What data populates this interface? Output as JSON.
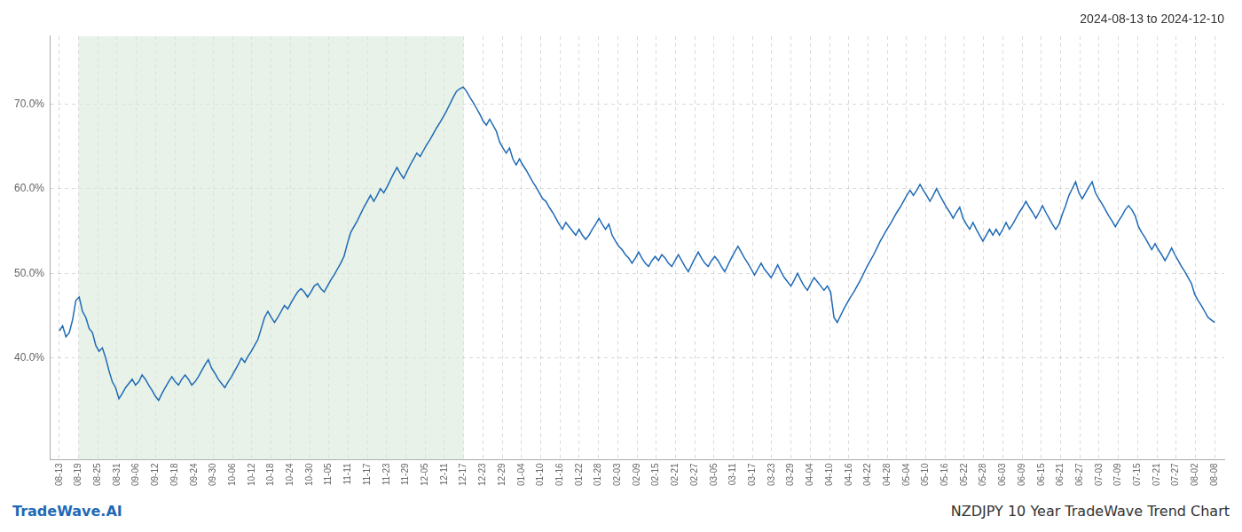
{
  "chart_data": {
    "type": "line",
    "title": "2024-08-13 to 2024-12-10",
    "annotations": [
      "TradeWave.AI",
      "NZDJPY 10 Year TradeWave Trend Chart"
    ],
    "color": "#1f6ab5",
    "grid": true,
    "shaded_range": {
      "from": "08-19",
      "to": "12-17",
      "color": "#d8ead8"
    },
    "xlim": [
      -0.5,
      60.5
    ],
    "xticks": [
      {
        "value": 0,
        "label": "08-13"
      },
      {
        "value": 1,
        "label": "08-19"
      },
      {
        "value": 2,
        "label": "08-25"
      },
      {
        "value": 3,
        "label": "08-31"
      },
      {
        "value": 4,
        "label": "09-06"
      },
      {
        "value": 5,
        "label": "09-12"
      },
      {
        "value": 6,
        "label": "09-18"
      },
      {
        "value": 7,
        "label": "09-24"
      },
      {
        "value": 8,
        "label": "09-30"
      },
      {
        "value": 9,
        "label": "10-06"
      },
      {
        "value": 10,
        "label": "10-12"
      },
      {
        "value": 11,
        "label": "10-18"
      },
      {
        "value": 12,
        "label": "10-24"
      },
      {
        "value": 13,
        "label": "10-30"
      },
      {
        "value": 14,
        "label": "11-05"
      },
      {
        "value": 15,
        "label": "11-11"
      },
      {
        "value": 16,
        "label": "11-17"
      },
      {
        "value": 17,
        "label": "11-23"
      },
      {
        "value": 18,
        "label": "11-29"
      },
      {
        "value": 19,
        "label": "12-05"
      },
      {
        "value": 20,
        "label": "12-11"
      },
      {
        "value": 21,
        "label": "12-17"
      },
      {
        "value": 22,
        "label": "12-23"
      },
      {
        "value": 23,
        "label": "12-29"
      },
      {
        "value": 24,
        "label": "01-04"
      },
      {
        "value": 25,
        "label": "01-10"
      },
      {
        "value": 26,
        "label": "01-16"
      },
      {
        "value": 27,
        "label": "01-22"
      },
      {
        "value": 28,
        "label": "01-28"
      },
      {
        "value": 29,
        "label": "02-03"
      },
      {
        "value": 30,
        "label": "02-09"
      },
      {
        "value": 31,
        "label": "02-15"
      },
      {
        "value": 32,
        "label": "02-21"
      },
      {
        "value": 33,
        "label": "02-27"
      },
      {
        "value": 34,
        "label": "03-05"
      },
      {
        "value": 35,
        "label": "03-11"
      },
      {
        "value": 36,
        "label": "03-17"
      },
      {
        "value": 37,
        "label": "03-23"
      },
      {
        "value": 38,
        "label": "03-29"
      },
      {
        "value": 39,
        "label": "04-04"
      },
      {
        "value": 40,
        "label": "04-10"
      },
      {
        "value": 41,
        "label": "04-16"
      },
      {
        "value": 42,
        "label": "04-22"
      },
      {
        "value": 43,
        "label": "04-28"
      },
      {
        "value": 44,
        "label": "05-04"
      },
      {
        "value": 45,
        "label": "05-10"
      },
      {
        "value": 46,
        "label": "05-16"
      },
      {
        "value": 47,
        "label": "05-22"
      },
      {
        "value": 48,
        "label": "05-28"
      },
      {
        "value": 49,
        "label": "06-03"
      },
      {
        "value": 50,
        "label": "06-09"
      },
      {
        "value": 51,
        "label": "06-15"
      },
      {
        "value": 52,
        "label": "06-21"
      },
      {
        "value": 53,
        "label": "06-27"
      },
      {
        "value": 54,
        "label": "07-03"
      },
      {
        "value": 55,
        "label": "07-09"
      },
      {
        "value": 56,
        "label": "07-15"
      },
      {
        "value": 57,
        "label": "07-21"
      },
      {
        "value": 58,
        "label": "07-27"
      },
      {
        "value": 59,
        "label": "08-02"
      },
      {
        "value": 60,
        "label": "08-08"
      }
    ],
    "ylim": [
      28,
      78
    ],
    "yticks": [
      {
        "value": 40,
        "label": "40.0%"
      },
      {
        "value": 50,
        "label": "50.0%"
      },
      {
        "value": 60,
        "label": "60.0%"
      },
      {
        "value": 70,
        "label": "70.0%"
      }
    ],
    "values": [
      43.2,
      43.8,
      42.5,
      43.0,
      44.5,
      46.8,
      47.2,
      45.5,
      44.8,
      43.5,
      43.0,
      41.5,
      40.8,
      41.2,
      40.0,
      38.5,
      37.2,
      36.5,
      35.2,
      35.8,
      36.5,
      37.0,
      37.5,
      36.8,
      37.2,
      38.0,
      37.5,
      36.8,
      36.2,
      35.5,
      35.0,
      35.8,
      36.5,
      37.2,
      37.8,
      37.2,
      36.8,
      37.5,
      38.0,
      37.5,
      36.8,
      37.2,
      37.8,
      38.5,
      39.2,
      39.8,
      38.8,
      38.2,
      37.5,
      37.0,
      36.5,
      37.2,
      37.8,
      38.5,
      39.2,
      40.0,
      39.5,
      40.2,
      40.8,
      41.5,
      42.2,
      43.5,
      44.8,
      45.5,
      44.8,
      44.2,
      44.8,
      45.5,
      46.2,
      45.8,
      46.5,
      47.2,
      47.8,
      48.2,
      47.8,
      47.2,
      47.8,
      48.5,
      48.8,
      48.2,
      47.8,
      48.5,
      49.2,
      49.8,
      50.5,
      51.2,
      52.0,
      53.5,
      54.8,
      55.5,
      56.2,
      57.0,
      57.8,
      58.5,
      59.2,
      58.5,
      59.2,
      60.0,
      59.5,
      60.2,
      61.0,
      61.8,
      62.5,
      61.8,
      61.2,
      62.0,
      62.8,
      63.5,
      64.2,
      63.8,
      64.5,
      65.2,
      65.8,
      66.5,
      67.2,
      67.8,
      68.5,
      69.2,
      70.0,
      70.8,
      71.5,
      71.8,
      72.0,
      71.5,
      70.8,
      70.2,
      69.5,
      68.8,
      68.0,
      67.5,
      68.2,
      67.5,
      66.8,
      65.5,
      64.8,
      64.2,
      64.8,
      63.5,
      62.8,
      63.5,
      62.8,
      62.2,
      61.5,
      60.8,
      60.2,
      59.5,
      58.8,
      58.5,
      57.8,
      57.2,
      56.5,
      55.8,
      55.2,
      56.0,
      55.5,
      55.0,
      54.5,
      55.2,
      54.5,
      54.0,
      54.5,
      55.2,
      55.8,
      56.5,
      55.8,
      55.2,
      55.8,
      54.5,
      53.8,
      53.2,
      52.8,
      52.2,
      51.8,
      51.2,
      51.8,
      52.5,
      51.8,
      51.2,
      50.8,
      51.5,
      52.0,
      51.5,
      52.2,
      51.8,
      51.2,
      50.8,
      51.5,
      52.2,
      51.5,
      50.8,
      50.2,
      51.0,
      51.8,
      52.5,
      51.8,
      51.2,
      50.8,
      51.5,
      52.0,
      51.5,
      50.8,
      50.2,
      51.0,
      51.8,
      52.5,
      53.2,
      52.5,
      51.8,
      51.2,
      50.5,
      49.8,
      50.5,
      51.2,
      50.5,
      50.0,
      49.5,
      50.2,
      51.0,
      50.2,
      49.5,
      49.0,
      48.5,
      49.2,
      50.0,
      49.2,
      48.5,
      48.0,
      48.8,
      49.5,
      49.0,
      48.5,
      48.0,
      48.5,
      47.8,
      44.8,
      44.2,
      45.0,
      45.8,
      46.5,
      47.2,
      47.8,
      48.5,
      49.2,
      50.0,
      50.8,
      51.5,
      52.2,
      53.0,
      53.8,
      54.5,
      55.2,
      55.8,
      56.5,
      57.2,
      57.8,
      58.5,
      59.2,
      59.8,
      59.2,
      59.8,
      60.5,
      59.8,
      59.2,
      58.5,
      59.2,
      60.0,
      59.2,
      58.5,
      57.8,
      57.2,
      56.5,
      57.2,
      57.8,
      56.5,
      55.8,
      55.2,
      56.0,
      55.2,
      54.5,
      53.8,
      54.5,
      55.2,
      54.5,
      55.2,
      54.5,
      55.2,
      56.0,
      55.2,
      55.8,
      56.5,
      57.2,
      57.8,
      58.5,
      57.8,
      57.2,
      56.5,
      57.2,
      58.0,
      57.2,
      56.5,
      55.8,
      55.2,
      55.8,
      57.0,
      58.0,
      59.2,
      60.0,
      60.8,
      59.5,
      58.8,
      59.5,
      60.2,
      60.8,
      59.5,
      58.8,
      58.2,
      57.5,
      56.8,
      56.2,
      55.5,
      56.2,
      56.8,
      57.5,
      58.0,
      57.5,
      56.8,
      55.5,
      54.8,
      54.2,
      53.5,
      52.8,
      53.5,
      52.8,
      52.2,
      51.5,
      52.2,
      53.0,
      52.2,
      51.5,
      50.8,
      50.2,
      49.5,
      48.8,
      47.5,
      46.8,
      46.2,
      45.5,
      44.8,
      44.5,
      44.2
    ]
  }
}
